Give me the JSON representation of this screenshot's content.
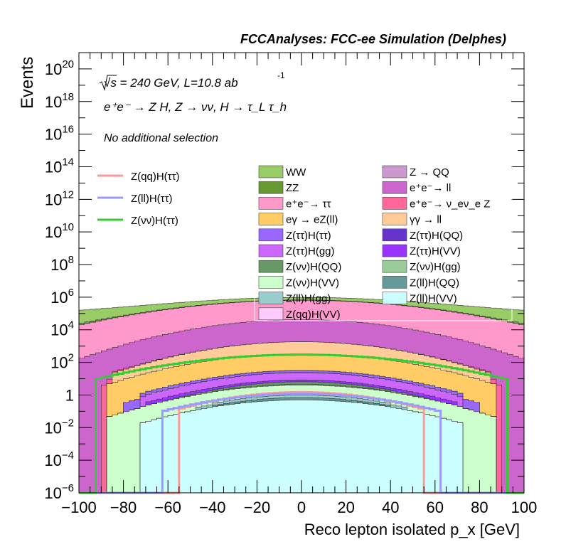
{
  "chart_data": {
    "type": "area",
    "title": "FCCAnalyses: FCC-ee Simulation (Delphes)",
    "xlabel": "Reco lepton isolated p_x [GeV]",
    "ylabel": "Events",
    "xlim": [
      -100,
      100
    ],
    "ylim": [
      1e-06,
      1e+21
    ],
    "yscale": "log",
    "grid": false,
    "x_ticks": [
      "−100",
      "−80",
      "−60",
      "−40",
      "−20",
      "0",
      "20",
      "40",
      "60",
      "80",
      "100"
    ],
    "y_ticks": [
      "10^-6",
      "10^-4",
      "10^-2",
      "1",
      "10^2",
      "10^4",
      "10^6",
      "10^8",
      "10^10",
      "10^12",
      "10^14",
      "10^16",
      "10^18",
      "10^20"
    ],
    "annotations": {
      "energy": "√s = 240 GeV, L=10.8 ab",
      "energy_sup": "-1",
      "process": "e⁺e⁻ → Z H, Z → νν, H → τ_L τ_h",
      "selection": "No additional selection"
    },
    "legend_placement": "top-right",
    "line_legend_placement": "top-left",
    "stack_order": [
      "Z(ll)H(VV)",
      "Z(ll)H(QQ)",
      "Z(ll)H(gg)",
      "Z(νν)H(VV)",
      "Z(νν)H(gg)",
      "Z(νν)H(QQ)",
      "Z(ττ)H(VV)",
      "Z(ττ)H(gg)",
      "Z(ττ)H(QQ)",
      "Z(ττ)H(ττ)",
      "Z(qq)H(VV)",
      "eγ → eZ(ll)",
      "γγ → ll",
      "e⁺e⁻→ ν_eν_e Z",
      "e⁺e⁻→ ll",
      "e⁺e⁻→ ττ",
      "Z → QQ",
      "ZZ",
      "WW"
    ],
    "series": [
      {
        "name": "WW",
        "kind": "stack",
        "color": "#99cc66",
        "peak": 300000,
        "sigma": 78,
        "cut": 100
      },
      {
        "name": "ZZ",
        "kind": "stack",
        "color": "#669933",
        "peak": 15000,
        "sigma": 70,
        "cut": 100
      },
      {
        "name": "e⁺e⁻→ ττ",
        "kind": "stack",
        "color": "#ff99cc",
        "peak": 600000,
        "sigma": 38,
        "cut": 100
      },
      {
        "name": "eγ → eZ(ll)",
        "kind": "stack",
        "color": "#ffcc66",
        "peak": 300,
        "sigma": 30,
        "cut": 88
      },
      {
        "name": "Z(ττ)H(ττ)",
        "kind": "stack",
        "color": "#9966ff",
        "peak": 8,
        "sigma": 30,
        "cut": 80
      },
      {
        "name": "Z(ττ)H(gg)",
        "kind": "stack",
        "color": "#cc66ff",
        "peak": 15,
        "sigma": 28,
        "cut": 72
      },
      {
        "name": "Z(νν)H(QQ)",
        "kind": "stack",
        "color": "#669966",
        "peak": 2,
        "sigma": 22,
        "cut": 60
      },
      {
        "name": "Z(νν)H(VV)",
        "kind": "stack",
        "color": "#ccffcc",
        "peak": 3,
        "sigma": 30,
        "cut": 88
      },
      {
        "name": "Z(ll)H(gg)",
        "kind": "stack",
        "color": "#99cccc",
        "peak": 0.3,
        "sigma": 25,
        "cut": 48
      },
      {
        "name": "Z(qq)H(VV)",
        "kind": "stack",
        "color": "#ffccff",
        "peak": 0.5,
        "sigma": 25,
        "cut": 55
      },
      {
        "name": "Z → QQ",
        "kind": "stack",
        "color": "#cc99cc",
        "peak": 20000,
        "sigma": 28,
        "cut": 100
      },
      {
        "name": "e⁺e⁻→ ll",
        "kind": "stack",
        "color": "#cc66cc",
        "peak": 40000,
        "sigma": 30,
        "cut": 100
      },
      {
        "name": "e⁺e⁻→ ν_eν_e Z",
        "kind": "stack",
        "color": "#ff6699",
        "peak": 20,
        "sigma": 50,
        "cut": 90
      },
      {
        "name": "γγ → ll",
        "kind": "stack",
        "color": "#ffcc99",
        "peak": 1500,
        "sigma": 28,
        "cut": 84
      },
      {
        "name": "Z(ττ)H(QQ)",
        "kind": "stack",
        "color": "#6633cc",
        "peak": 0.4,
        "sigma": 22,
        "cut": 40
      },
      {
        "name": "Z(ττ)H(VV)",
        "kind": "stack",
        "color": "#9933ff",
        "peak": 2,
        "sigma": 30,
        "cut": 70
      },
      {
        "name": "Z(νν)H(gg)",
        "kind": "stack",
        "color": "#99cc99",
        "peak": 0.5,
        "sigma": 22,
        "cut": 40
      },
      {
        "name": "Z(ll)H(QQ)",
        "kind": "stack",
        "color": "#669999",
        "peak": 0.2,
        "sigma": 22,
        "cut": 40
      },
      {
        "name": "Z(ll)H(VV)",
        "kind": "stack",
        "color": "#ccffff",
        "peak": 0.5,
        "sigma": 28,
        "cut": 72
      },
      {
        "name": "Z(qq)H(ττ)",
        "kind": "line",
        "color": "#ff9999",
        "peak": 1.5,
        "sigma": 25,
        "cut": 55
      },
      {
        "name": "Z(ll)H(ττ)",
        "kind": "line",
        "color": "#9999ff",
        "peak": 1.2,
        "sigma": 28,
        "cut": 62
      },
      {
        "name": "Z(νν)H(ττ)",
        "kind": "line",
        "color": "#33cc33",
        "peak": 300,
        "sigma": 35,
        "cut": 92
      }
    ]
  }
}
